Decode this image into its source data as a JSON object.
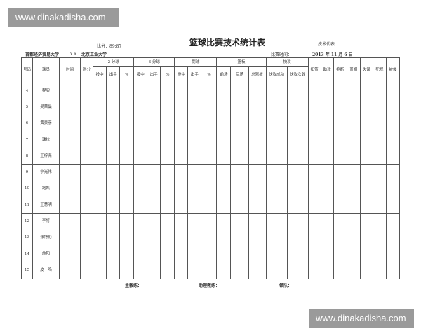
{
  "watermark": "www.dinakadisha.com",
  "header": {
    "score": "比分：89:87",
    "title": "篮球比赛技术统计表",
    "tech_rep": "技术代表：",
    "team_a": "首都经济贸易大学",
    "vs": "v s",
    "team_b": "北京工业大学",
    "date_label": "比赛时间：",
    "date": "2013 年 11 月 6 日"
  },
  "columns": {
    "number": "号码",
    "player": "球员",
    "time": "时间",
    "points": "得分",
    "two": "2 分球",
    "three": "3 分球",
    "ft": "罚球",
    "reb": "篮板",
    "fast": "快攻",
    "made": "投中",
    "att": "出手",
    "pct": "%",
    "off": "前场",
    "def": "后场",
    "total": "总篮板",
    "fb_made": "快攻成功",
    "fb_att": "快攻次数",
    "dunk": "扣篮",
    "ast": "助攻",
    "stl": "抢断",
    "blk": "盖帽",
    "to": "失误",
    "foul": "犯规",
    "fouled": "被侵"
  },
  "players": [
    {
      "no": "4",
      "name": "程实"
    },
    {
      "no": "5",
      "name": "吴荣燊"
    },
    {
      "no": "6",
      "name": "黄景彦"
    },
    {
      "no": "7",
      "name": "璩抗"
    },
    {
      "no": "8",
      "name": "王梓尧"
    },
    {
      "no": "9",
      "name": "宁光伟"
    },
    {
      "no": "10",
      "name": "路凯"
    },
    {
      "no": "11",
      "name": "王慧明"
    },
    {
      "no": "12",
      "name": "李将"
    },
    {
      "no": "13",
      "name": "张博伦"
    },
    {
      "no": "14",
      "name": "施阳"
    },
    {
      "no": "15",
      "name": "皮一鸣"
    }
  ],
  "footer": {
    "coach": "主教练：",
    "assistant": "助理教练：",
    "leader": "领队："
  }
}
